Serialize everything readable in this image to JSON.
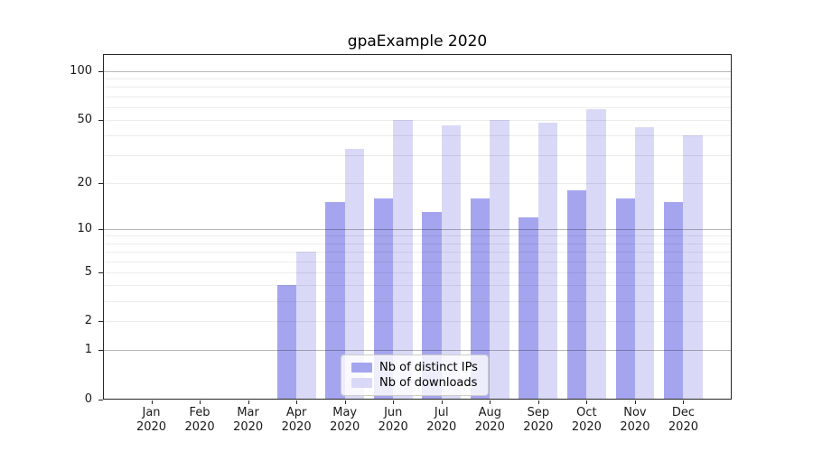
{
  "chart_data": {
    "type": "bar",
    "title": "gpaExample 2020",
    "categories": [
      "Jan",
      "Feb",
      "Mar",
      "Apr",
      "May",
      "Jun",
      "Jul",
      "Aug",
      "Sep",
      "Oct",
      "Nov",
      "Dec"
    ],
    "category_year": "2020",
    "series": [
      {
        "name": "Nb of distinct IPs",
        "color": "#a5a5ef",
        "values": [
          0,
          0,
          0,
          4,
          15,
          16,
          13,
          16,
          12,
          18,
          16,
          15
        ]
      },
      {
        "name": "Nb of downloads",
        "color": "#d9d9f7",
        "values": [
          0,
          0,
          0,
          7,
          33,
          50,
          46,
          50,
          48,
          58,
          45,
          40
        ]
      }
    ],
    "xlabel": "",
    "ylabel": "",
    "yscale": "log1p",
    "ylim": [
      0,
      128
    ],
    "yticks": [
      0,
      1,
      2,
      5,
      10,
      20,
      50,
      100
    ],
    "major_gridlines": [
      1,
      10,
      100
    ],
    "minor_gridlines": [
      2,
      3,
      4,
      5,
      6,
      7,
      8,
      9,
      20,
      30,
      40,
      50,
      60,
      70,
      80,
      90
    ],
    "grid": true,
    "legend_position": "lower center"
  }
}
